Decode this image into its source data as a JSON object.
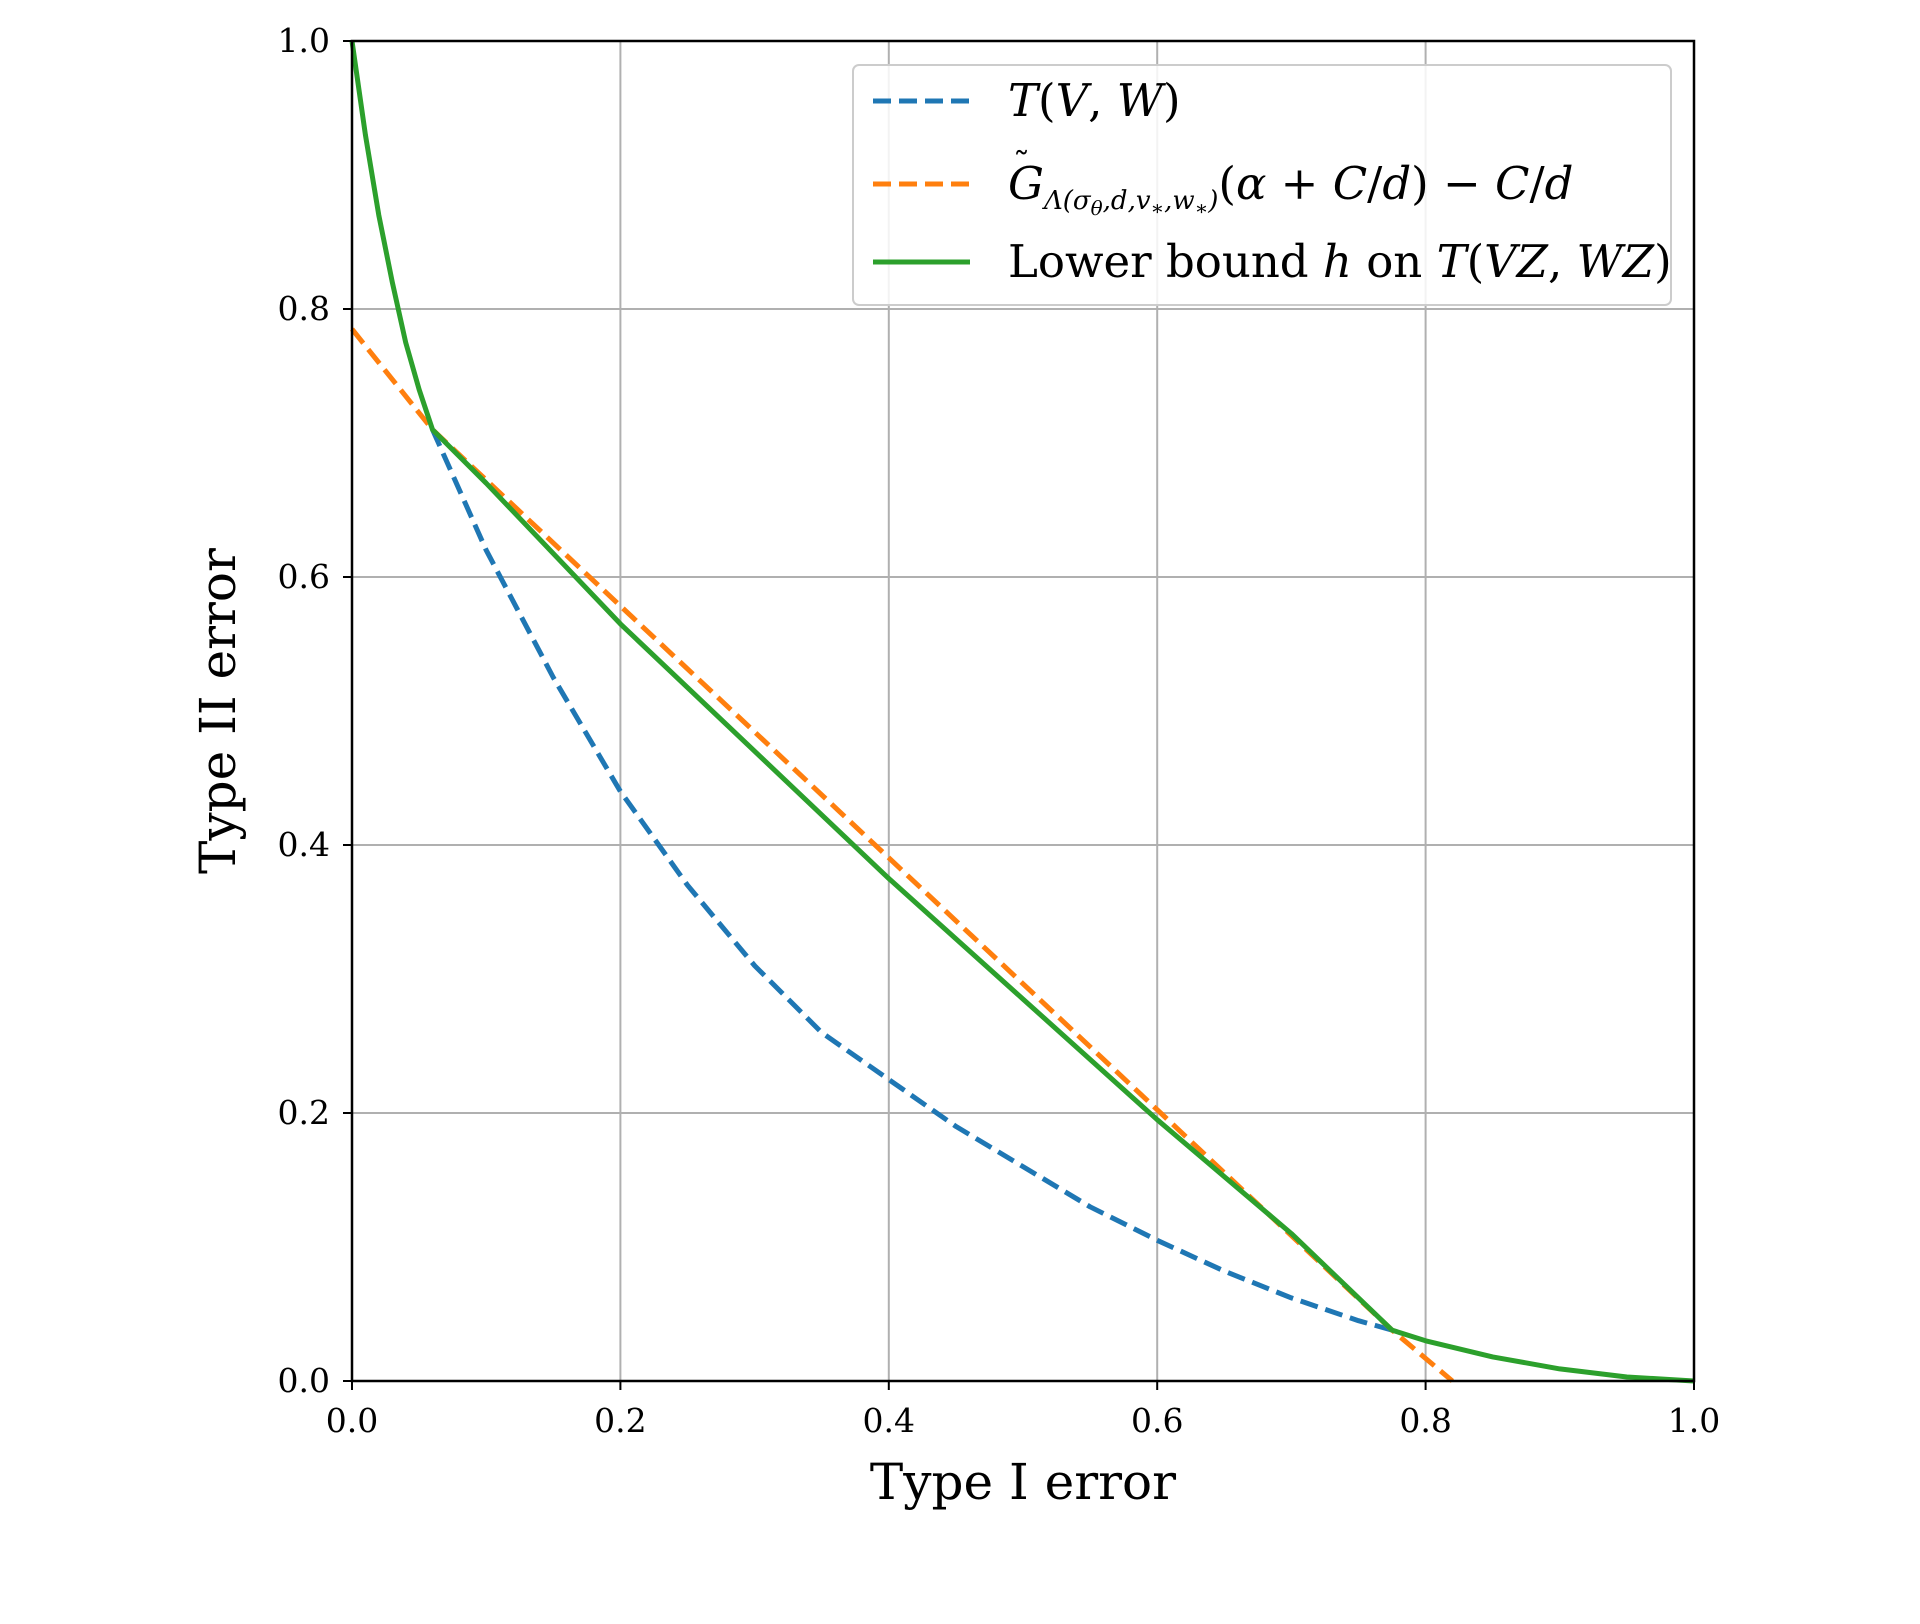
{
  "chart_data": {
    "type": "line",
    "xlabel": "Type I error",
    "ylabel": "Type II error",
    "xlim": [
      0.0,
      1.0
    ],
    "ylim": [
      0.0,
      1.0
    ],
    "xticks": [
      "0.0",
      "0.2",
      "0.4",
      "0.6",
      "0.8",
      "1.0"
    ],
    "yticks": [
      "0.0",
      "0.2",
      "0.4",
      "0.6",
      "0.8",
      "1.0"
    ],
    "grid": true,
    "legend_position": "top-right",
    "series": [
      {
        "name": "T(V, W)",
        "style": "dashed",
        "color": "#1f77b4",
        "x": [
          0.06,
          0.1,
          0.15,
          0.2,
          0.25,
          0.3,
          0.35,
          0.4,
          0.45,
          0.5,
          0.55,
          0.6,
          0.65,
          0.7,
          0.75,
          0.775
        ],
        "y": [
          0.71,
          0.62,
          0.525,
          0.44,
          0.37,
          0.31,
          0.26,
          0.225,
          0.19,
          0.16,
          0.13,
          0.105,
          0.082,
          0.062,
          0.045,
          0.038
        ]
      },
      {
        "name": "G̃_Λ(σ_θ, d, v_*, w_*)(α + C/d) − C/d",
        "style": "dashed",
        "color": "#ff7f0e",
        "x": [
          0.0,
          0.06,
          0.775,
          0.82
        ],
        "y": [
          0.785,
          0.71,
          0.038,
          0.0
        ]
      },
      {
        "name": "Lower bound h on T(VZ, WZ)",
        "style": "solid",
        "color": "#2ca02c",
        "x": [
          0.0,
          0.01,
          0.02,
          0.03,
          0.04,
          0.05,
          0.06,
          0.1,
          0.2,
          0.3,
          0.4,
          0.5,
          0.6,
          0.7,
          0.775,
          0.8,
          0.85,
          0.9,
          0.95,
          1.0
        ],
        "y": [
          1.0,
          0.93,
          0.87,
          0.82,
          0.775,
          0.74,
          0.71,
          0.67,
          0.565,
          0.47,
          0.375,
          0.285,
          0.195,
          0.11,
          0.038,
          0.03,
          0.018,
          0.009,
          0.003,
          0.0
        ]
      }
    ]
  }
}
